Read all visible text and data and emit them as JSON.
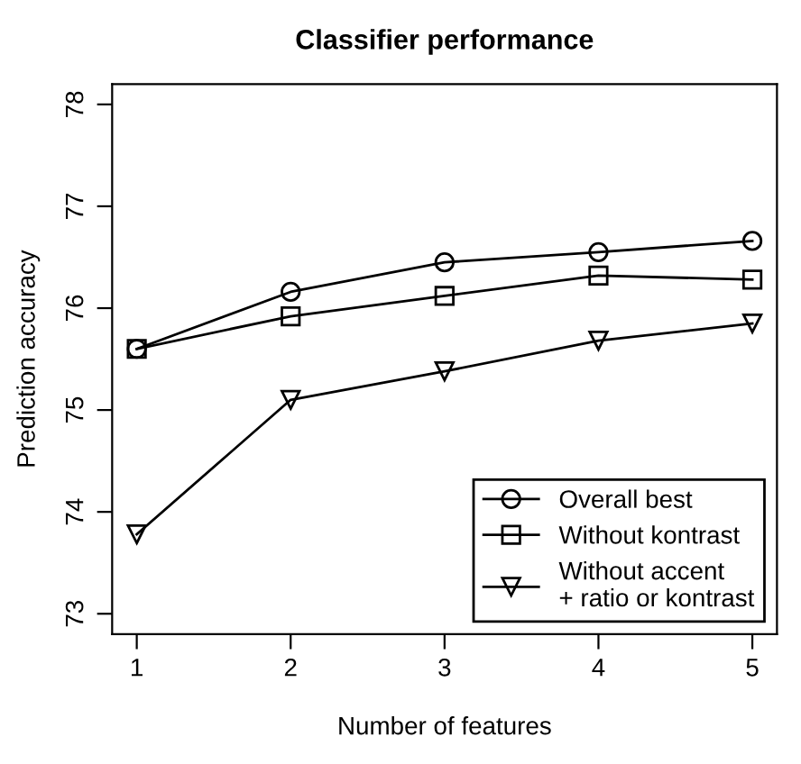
{
  "chart_data": {
    "type": "line",
    "title": "Classifier performance",
    "xlabel": "Number of features",
    "ylabel": "Prediction accuracy",
    "x": [
      1,
      2,
      3,
      4,
      5
    ],
    "series": [
      {
        "name": "Overall best",
        "color": "#000000",
        "marker": "circle",
        "values": [
          75.6,
          76.16,
          76.45,
          76.55,
          76.66
        ]
      },
      {
        "name": "Without kontrast",
        "color": "#000000",
        "marker": "square",
        "values": [
          75.6,
          75.92,
          76.12,
          76.32,
          76.28
        ]
      },
      {
        "name": "Without accent\n+ ratio or kontrast",
        "color": "#000000",
        "marker": "triangle",
        "values": [
          73.78,
          75.1,
          75.38,
          75.68,
          75.85
        ]
      }
    ],
    "xlim": [
      0.84,
      5.16
    ],
    "ylim": [
      72.8,
      78.2
    ],
    "xticks": [
      1,
      2,
      3,
      4,
      5
    ],
    "yticks": [
      73,
      74,
      75,
      76,
      77,
      78
    ],
    "grid": false,
    "legend": "bottom right",
    "line_style": "solid"
  }
}
